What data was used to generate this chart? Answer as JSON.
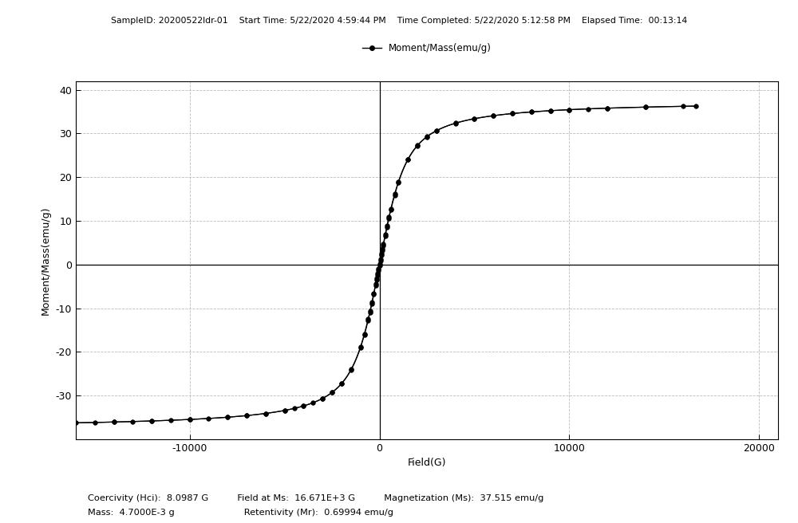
{
  "title_line": "SampleID: 20200522ldr-01    Start Time: 5/22/2020 4:59:44 PM    Time Completed: 5/22/2020 5:12:58 PM    Elapsed Time:  00:13:14",
  "legend_label": "Moment/Mass(emu/g)",
  "xlabel": "Field(G)",
  "ylabel": "Moment/Mass(emu/g)",
  "xlim_left": -16000,
  "xlim_right": 21000,
  "ylim_bottom": -40,
  "ylim_top": 42,
  "xticks": [
    -10000,
    0,
    10000,
    20000
  ],
  "yticks": [
    -30,
    -20,
    -10,
    0,
    10,
    20,
    30,
    40
  ],
  "Ms": 37.515,
  "a_param": 550,
  "coercivity": 8.0987,
  "retentivity": 0.69994,
  "line_color": "#000000",
  "marker_size": 4,
  "bg_color": "#ffffff",
  "grid_color": "#bbbbbb",
  "grid_style": "--",
  "figsize": [
    10.0,
    6.56
  ],
  "dpi": 100,
  "annotation_line1": "Coercivity (Hci):  8.0987 G          Field at Ms:  16.671E+3 G          Magnetization (Ms):  37.515 emu/g",
  "annotation_line2": "Mass:  4.7000E-3 g                        Retentivity (Mr):  0.69994 emu/g"
}
